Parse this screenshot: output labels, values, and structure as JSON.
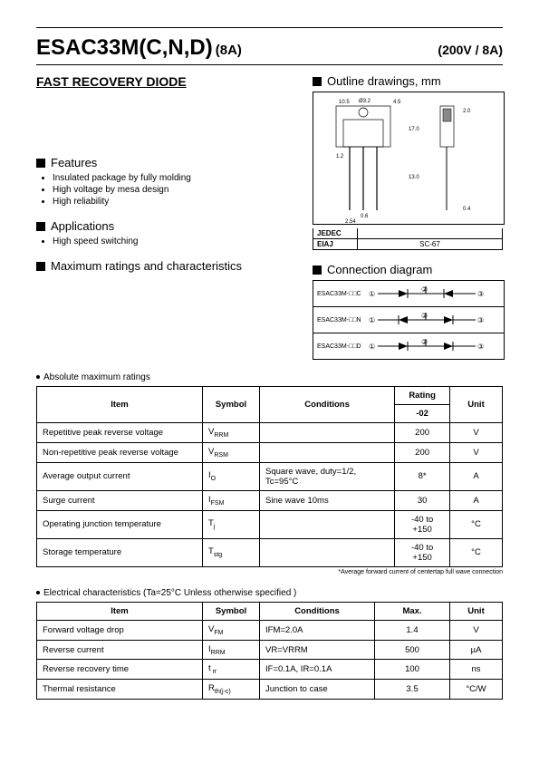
{
  "header": {
    "part_number": "ESAC33M(C,N,D)",
    "current": "(8A)",
    "rating": "(200V / 8A)"
  },
  "subtitle": "FAST RECOVERY  DIODE",
  "outline_title": "Outline  drawings,  mm",
  "outline_dims": [
    "10.5",
    "Ø3.2",
    "4.5",
    "2.0",
    "17.0",
    "1.2",
    "13.0",
    "0.6",
    "2.54",
    "0.4"
  ],
  "jedec": {
    "jedec_lbl": "JEDEC",
    "jedec_val": "",
    "eiaj_lbl": "EIAJ",
    "eiaj_val": "SC-67"
  },
  "features_title": "Features",
  "features": [
    "Insulated package by fully molding",
    "High voltage by mesa design",
    "High reliability"
  ],
  "applications_title": "Applications",
  "applications": [
    "High speed switching"
  ],
  "max_ratings_title": "Maximum ratings and characteristics",
  "abs_max_caption": "Absolute maximum ratings",
  "conn_title": "Connection diagram",
  "conn_rows": [
    {
      "label": "ESAC33M-□□C",
      "p1": "①",
      "p2": "②",
      "p3": "③"
    },
    {
      "label": "ESAC33M-□□N",
      "p1": "①",
      "p2": "②",
      "p3": "③"
    },
    {
      "label": "ESAC33M-□□D",
      "p1": "①",
      "p2": "②",
      "p3": "③"
    }
  ],
  "ratings_table": {
    "headers": {
      "item": "Item",
      "symbol": "Symbol",
      "conditions": "Conditions",
      "rating": "Rating",
      "rating_sub": "-02",
      "unit": "Unit"
    },
    "rows": [
      {
        "item": "Repetitive peak reverse voltage",
        "symbol": "V",
        "symbol_sub": "RRM",
        "conditions": "",
        "rating": "200",
        "unit": "V"
      },
      {
        "item": "Non-repetitive peak reverse voltage",
        "symbol": "V",
        "symbol_sub": "RSM",
        "conditions": "",
        "rating": "200",
        "unit": "V"
      },
      {
        "item": "Average output current",
        "symbol": "I",
        "symbol_sub": "O",
        "conditions": "Square wave, duty=1/2, Tc=95°C",
        "rating": "8*",
        "unit": "A"
      },
      {
        "item": "Surge current",
        "symbol": "I",
        "symbol_sub": "FSM",
        "conditions": "Sine wave  10ms",
        "rating": "30",
        "unit": "A"
      },
      {
        "item": "Operating junction temperature",
        "symbol": "T",
        "symbol_sub": "j",
        "conditions": "",
        "rating": "-40  to +150",
        "unit": "°C"
      },
      {
        "item": "Storage temperature",
        "symbol": "T",
        "symbol_sub": "stg",
        "conditions": "",
        "rating": "-40  to +150",
        "unit": "°C"
      }
    ],
    "footnote": "*Average forward current of centertap full wave connection"
  },
  "elec_caption": "Electrical  characteristics  (Ta=25°C  Unless  otherwise  specified )",
  "elec_table": {
    "headers": {
      "item": "Item",
      "symbol": "Symbol",
      "conditions": "Conditions",
      "max": "Max.",
      "unit": "Unit"
    },
    "rows": [
      {
        "item": "Forward voltage drop",
        "symbol": "V",
        "symbol_sub": "FM",
        "conditions": "IFM=2.0A",
        "max": "1.4",
        "unit": "V"
      },
      {
        "item": "Reverse current",
        "symbol": "I",
        "symbol_sub": "RRM",
        "conditions": "VR=VRRM",
        "max": "500",
        "unit": "µA"
      },
      {
        "item": "Reverse recovery time",
        "symbol": "t",
        "symbol_sub": " rr",
        "conditions": "IF=0.1A, IR=0.1A",
        "max": "100",
        "unit": "ns"
      },
      {
        "item": "Thermal resistance",
        "symbol": "R",
        "symbol_sub": "th(j-c)",
        "conditions": "Junction to case",
        "max": "3.5",
        "unit": "°C/W"
      }
    ]
  }
}
